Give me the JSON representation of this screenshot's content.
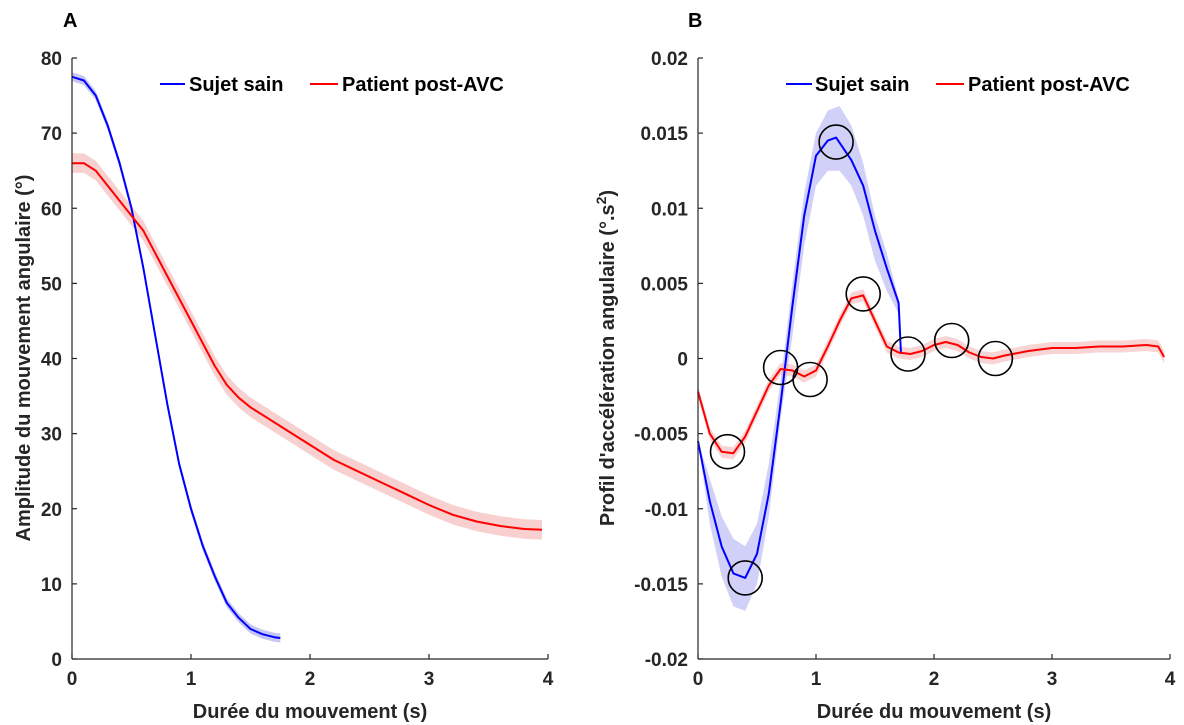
{
  "chart_data": [
    {
      "panel": "A",
      "type": "line",
      "xlabel": "Durée du mouvement (s)",
      "ylabel": "Amplitude du mouvement angulaire (°)",
      "xlim": [
        0,
        4
      ],
      "ylim": [
        0,
        80
      ],
      "xticks": [
        "0",
        "1",
        "2",
        "3",
        "4"
      ],
      "yticks": [
        "0",
        "10",
        "20",
        "30",
        "40",
        "50",
        "60",
        "70",
        "80"
      ],
      "legend_position": "top-right",
      "grid": false,
      "series": [
        {
          "name": "Sujet sain",
          "color": "#0000ff",
          "band_color": "#9999ee",
          "band": 0.6,
          "x": [
            0,
            0.1,
            0.2,
            0.3,
            0.4,
            0.5,
            0.6,
            0.7,
            0.8,
            0.9,
            1.0,
            1.1,
            1.2,
            1.3,
            1.4,
            1.5,
            1.6,
            1.7,
            1.75
          ],
          "y": [
            77.5,
            77,
            75,
            71,
            66,
            60,
            52,
            43,
            34,
            26,
            20,
            15,
            11,
            7.5,
            5.5,
            4,
            3.3,
            2.9,
            2.8
          ]
        },
        {
          "name": "Patient post-AVC",
          "color": "#ff0000",
          "band_color": "#f3aaaa",
          "band": 1.3,
          "x": [
            0,
            0.1,
            0.2,
            0.3,
            0.4,
            0.5,
            0.6,
            0.7,
            0.8,
            0.9,
            1.0,
            1.1,
            1.2,
            1.3,
            1.4,
            1.5,
            1.6,
            1.8,
            2.0,
            2.2,
            2.4,
            2.6,
            2.8,
            3.0,
            3.2,
            3.4,
            3.6,
            3.8,
            3.95
          ],
          "y": [
            66,
            66,
            65,
            63,
            61,
            59,
            57,
            54,
            51,
            48,
            45,
            42,
            39,
            36.5,
            34.8,
            33.5,
            32.5,
            30.5,
            28.5,
            26.5,
            25,
            23.5,
            22,
            20.5,
            19.2,
            18.3,
            17.7,
            17.3,
            17.2
          ]
        }
      ]
    },
    {
      "panel": "B",
      "type": "line",
      "xlabel": "Durée du mouvement (s)",
      "ylabel": "Profil d'accélération angulaire (°.s",
      "ylabel_sup": "2",
      "xlim": [
        0,
        4
      ],
      "ylim": [
        -0.02,
        0.02
      ],
      "xticks": [
        "0",
        "1",
        "2",
        "3",
        "4"
      ],
      "yticks": [
        "-0.02",
        "-0.015",
        "-0.01",
        "-0.005",
        "0",
        "0.005",
        "0.01",
        "0.015",
        "0.02"
      ],
      "legend_position": "top-right",
      "grid": false,
      "series": [
        {
          "name": "Sujet sain",
          "color": "#0000ff",
          "band_color": "#aaaaf2",
          "band_x": [
            0,
            0.1,
            0.2,
            0.3,
            0.4,
            0.5,
            0.6,
            0.7,
            0.8,
            0.9,
            1.0,
            1.1,
            1.2,
            1.3,
            1.4,
            1.5,
            1.6,
            1.7,
            1.72
          ],
          "band_upper": [
            -0.0055,
            -0.008,
            -0.0105,
            -0.012,
            -0.0125,
            -0.011,
            -0.007,
            -0.0015,
            0.005,
            0.011,
            0.015,
            0.0165,
            0.0168,
            0.0155,
            0.013,
            0.0095,
            0.007,
            0.004,
            0.001
          ],
          "band_lower": [
            -0.0055,
            -0.011,
            -0.0145,
            -0.0165,
            -0.0168,
            -0.015,
            -0.0105,
            -0.004,
            0.0015,
            0.0075,
            0.0115,
            0.0125,
            0.0125,
            0.0115,
            0.0095,
            0.0065,
            0.0045,
            0.003,
            0.0002
          ],
          "x": [
            0,
            0.1,
            0.2,
            0.3,
            0.4,
            0.5,
            0.6,
            0.7,
            0.8,
            0.9,
            1.0,
            1.1,
            1.17,
            1.3,
            1.4,
            1.5,
            1.6,
            1.7,
            1.72
          ],
          "y": [
            -0.0055,
            -0.0095,
            -0.0125,
            -0.0143,
            -0.0146,
            -0.013,
            -0.009,
            -0.003,
            0.0035,
            0.0095,
            0.0135,
            0.0145,
            0.0147,
            0.0132,
            0.0115,
            0.0085,
            0.006,
            0.0037,
            0.0003
          ]
        },
        {
          "name": "Patient post-AVC",
          "color": "#ff0000",
          "band_color": "#f4b0b0",
          "band": 0.0004,
          "x": [
            0,
            0.1,
            0.2,
            0.3,
            0.4,
            0.5,
            0.6,
            0.7,
            0.8,
            0.9,
            1.0,
            1.1,
            1.2,
            1.3,
            1.4,
            1.5,
            1.6,
            1.7,
            1.8,
            1.9,
            2.0,
            2.1,
            2.2,
            2.3,
            2.4,
            2.5,
            2.6,
            2.8,
            3.0,
            3.2,
            3.4,
            3.6,
            3.8,
            3.9,
            3.95
          ],
          "y": [
            -0.0022,
            -0.005,
            -0.0062,
            -0.0063,
            -0.0052,
            -0.0035,
            -0.0018,
            -0.0007,
            -0.0008,
            -0.0012,
            -0.0008,
            0.0008,
            0.0025,
            0.004,
            0.0042,
            0.0025,
            0.0008,
            0.0004,
            0.0003,
            0.0005,
            0.0009,
            0.0011,
            0.0009,
            0.0004,
            0.0001,
            0.0,
            0.0002,
            0.0005,
            0.0007,
            0.0007,
            0.0008,
            0.0008,
            0.0009,
            0.0008,
            0.0001
          ]
        }
      ],
      "annotations": {
        "type": "circle",
        "points": [
          {
            "x": 0.4,
            "y": -0.0146
          },
          {
            "x": 1.17,
            "y": 0.0144
          },
          {
            "x": 0.25,
            "y": -0.0062
          },
          {
            "x": 0.7,
            "y": -0.0006
          },
          {
            "x": 0.95,
            "y": -0.0014
          },
          {
            "x": 1.4,
            "y": 0.0043
          },
          {
            "x": 1.78,
            "y": 0.0003
          },
          {
            "x": 2.15,
            "y": 0.0012
          },
          {
            "x": 2.52,
            "y": 0.0
          }
        ]
      }
    }
  ]
}
